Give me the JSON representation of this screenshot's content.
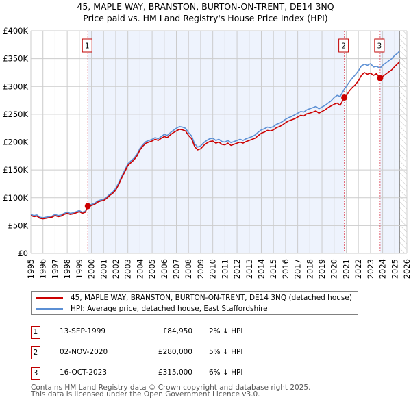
{
  "header": {
    "title_line1": "45, MAPLE WAY, BRANSTON, BURTON-ON-TRENT, DE14 3NQ",
    "title_line2": "Price paid vs. HM Land Registry's House Price Index (HPI)"
  },
  "colors": {
    "price_paid": "#cc0000",
    "hpi": "#5b8fd4",
    "shade": "#eef3fd",
    "grid": "#cccccc",
    "marker_border": "#c00000",
    "vline": "#e06070"
  },
  "chart_data": {
    "type": "line",
    "title": "45, MAPLE WAY, BRANSTON, BURTON-ON-TRENT, DE14 3NQ — Price paid vs. HM Land Registry's House Price Index (HPI)",
    "xlabel": "",
    "ylabel": "",
    "xlim": [
      1995,
      2026
    ],
    "ylim": [
      0,
      400000
    ],
    "grid": true,
    "x_ticks": [
      "1995",
      "1996",
      "1997",
      "1998",
      "1999",
      "2000",
      "2001",
      "2002",
      "2003",
      "2004",
      "2005",
      "2006",
      "2007",
      "2008",
      "2009",
      "2010",
      "2011",
      "2012",
      "2013",
      "2014",
      "2015",
      "2016",
      "2017",
      "2018",
      "2019",
      "2020",
      "2021",
      "2022",
      "2023",
      "2024",
      "2025",
      "2026"
    ],
    "y_ticks": [
      {
        "value": 0,
        "label": "£0"
      },
      {
        "value": 50000,
        "label": "£50K"
      },
      {
        "value": 100000,
        "label": "£100K"
      },
      {
        "value": 150000,
        "label": "£150K"
      },
      {
        "value": 200000,
        "label": "£200K"
      },
      {
        "value": 250000,
        "label": "£250K"
      },
      {
        "value": 300000,
        "label": "£300K"
      },
      {
        "value": 350000,
        "label": "£350K"
      },
      {
        "value": 400000,
        "label": "£400K"
      }
    ],
    "shaded_ranges": [
      [
        1999.7,
        2020.84
      ],
      [
        2023.79,
        2025.4
      ]
    ],
    "hatched_from": 2025.4,
    "legend_position": "below",
    "series": [
      {
        "name": "45, MAPLE WAY, BRANSTON, BURTON-ON-TRENT, DE14 3NQ (detached house)",
        "color": "#cc0000",
        "x": [
          1995.0,
          1995.25,
          1995.5,
          1995.75,
          1996.0,
          1996.25,
          1996.5,
          1996.75,
          1997.0,
          1997.25,
          1997.5,
          1997.75,
          1998.0,
          1998.25,
          1998.5,
          1998.75,
          1999.0,
          1999.25,
          1999.5,
          1999.7,
          2000.0,
          2000.25,
          2000.5,
          2000.75,
          2001.0,
          2001.25,
          2001.5,
          2001.75,
          2002.0,
          2002.25,
          2002.5,
          2002.75,
          2003.0,
          2003.25,
          2003.5,
          2003.75,
          2004.0,
          2004.25,
          2004.5,
          2004.75,
          2005.0,
          2005.25,
          2005.5,
          2005.75,
          2006.0,
          2006.25,
          2006.5,
          2006.75,
          2007.0,
          2007.25,
          2007.5,
          2007.75,
          2008.0,
          2008.25,
          2008.5,
          2008.75,
          2009.0,
          2009.25,
          2009.5,
          2009.75,
          2010.0,
          2010.25,
          2010.5,
          2010.75,
          2011.0,
          2011.25,
          2011.5,
          2011.75,
          2012.0,
          2012.25,
          2012.5,
          2012.75,
          2013.0,
          2013.25,
          2013.5,
          2013.75,
          2014.0,
          2014.25,
          2014.5,
          2014.75,
          2015.0,
          2015.25,
          2015.5,
          2015.75,
          2016.0,
          2016.25,
          2016.5,
          2016.75,
          2017.0,
          2017.25,
          2017.5,
          2017.75,
          2018.0,
          2018.25,
          2018.5,
          2018.75,
          2019.0,
          2019.25,
          2019.5,
          2019.75,
          2020.0,
          2020.25,
          2020.5,
          2020.84,
          2021.0,
          2021.25,
          2021.5,
          2021.75,
          2022.0,
          2022.25,
          2022.5,
          2022.75,
          2023.0,
          2023.25,
          2023.5,
          2023.79,
          2024.0,
          2024.25,
          2024.5,
          2024.75,
          2025.0,
          2025.25,
          2025.4
        ],
        "values": [
          68000,
          66000,
          67000,
          63000,
          62000,
          63000,
          64000,
          65000,
          68000,
          66000,
          67000,
          70000,
          72000,
          70000,
          71000,
          73000,
          75000,
          72000,
          74000,
          84950,
          86000,
          88000,
          92000,
          94000,
          95000,
          99000,
          104000,
          108000,
          114000,
          124000,
          136000,
          147000,
          158000,
          163000,
          168000,
          175000,
          186000,
          193000,
          198000,
          200000,
          202000,
          205000,
          203000,
          207000,
          210000,
          208000,
          213000,
          217000,
          220000,
          223000,
          222000,
          220000,
          212000,
          206000,
          192000,
          186000,
          188000,
          194000,
          198000,
          201000,
          202000,
          198000,
          200000,
          196000,
          195000,
          198000,
          194000,
          196000,
          198000,
          200000,
          198000,
          201000,
          203000,
          205000,
          207000,
          212000,
          216000,
          218000,
          221000,
          220000,
          222000,
          226000,
          228000,
          231000,
          235000,
          238000,
          240000,
          242000,
          245000,
          248000,
          247000,
          251000,
          252000,
          254000,
          256000,
          252000,
          255000,
          258000,
          262000,
          265000,
          268000,
          270000,
          266000,
          280000,
          283000,
          292000,
          298000,
          303000,
          310000,
          320000,
          325000,
          322000,
          324000,
          320000,
          323000,
          315000,
          318000,
          322000,
          326000,
          330000,
          336000,
          341000,
          345000
        ]
      },
      {
        "name": "HPI: Average price, detached house, East Staffordshire",
        "color": "#5b8fd4",
        "x": [
          1995.0,
          1995.25,
          1995.5,
          1995.75,
          1996.0,
          1996.25,
          1996.5,
          1996.75,
          1997.0,
          1997.25,
          1997.5,
          1997.75,
          1998.0,
          1998.25,
          1998.5,
          1998.75,
          1999.0,
          1999.25,
          1999.5,
          1999.7,
          2000.0,
          2000.25,
          2000.5,
          2000.75,
          2001.0,
          2001.25,
          2001.5,
          2001.75,
          2002.0,
          2002.25,
          2002.5,
          2002.75,
          2003.0,
          2003.25,
          2003.5,
          2003.75,
          2004.0,
          2004.25,
          2004.5,
          2004.75,
          2005.0,
          2005.25,
          2005.5,
          2005.75,
          2006.0,
          2006.25,
          2006.5,
          2006.75,
          2007.0,
          2007.25,
          2007.5,
          2007.75,
          2008.0,
          2008.25,
          2008.5,
          2008.75,
          2009.0,
          2009.25,
          2009.5,
          2009.75,
          2010.0,
          2010.25,
          2010.5,
          2010.75,
          2011.0,
          2011.25,
          2011.5,
          2011.75,
          2012.0,
          2012.25,
          2012.5,
          2012.75,
          2013.0,
          2013.25,
          2013.5,
          2013.75,
          2014.0,
          2014.25,
          2014.5,
          2014.75,
          2015.0,
          2015.25,
          2015.5,
          2015.75,
          2016.0,
          2016.25,
          2016.5,
          2016.75,
          2017.0,
          2017.25,
          2017.5,
          2017.75,
          2018.0,
          2018.25,
          2018.5,
          2018.75,
          2019.0,
          2019.25,
          2019.5,
          2019.75,
          2020.0,
          2020.25,
          2020.5,
          2020.84,
          2021.0,
          2021.25,
          2021.5,
          2021.75,
          2022.0,
          2022.25,
          2022.5,
          2022.75,
          2023.0,
          2023.25,
          2023.5,
          2023.79,
          2024.0,
          2024.25,
          2024.5,
          2024.75,
          2025.0,
          2025.25,
          2025.4
        ],
        "values": [
          70000,
          68000,
          69000,
          65000,
          64000,
          65000,
          66000,
          67000,
          70000,
          68000,
          69000,
          72000,
          74000,
          72000,
          73000,
          75000,
          77000,
          74000,
          76000,
          86500,
          88000,
          90000,
          94000,
          96000,
          97000,
          101000,
          106000,
          110000,
          117000,
          127000,
          139000,
          150000,
          161000,
          166000,
          171000,
          178000,
          189000,
          196000,
          201000,
          203000,
          205000,
          208000,
          206000,
          210000,
          214000,
          212000,
          217000,
          221000,
          225000,
          228000,
          227000,
          225000,
          217000,
          211000,
          197000,
          191000,
          193000,
          199000,
          203000,
          206000,
          207000,
          203000,
          205000,
          201000,
          200000,
          203000,
          199000,
          201000,
          203000,
          205000,
          203000,
          206000,
          208000,
          210000,
          213000,
          218000,
          222000,
          224000,
          227000,
          226000,
          228000,
          232000,
          234000,
          237000,
          241000,
          244000,
          246000,
          249000,
          252000,
          255000,
          254000,
          258000,
          260000,
          262000,
          264000,
          260000,
          263000,
          266000,
          270000,
          274000,
          280000,
          284000,
          282000,
          295000,
          300000,
          308000,
          315000,
          321000,
          328000,
          337000,
          340000,
          338000,
          341000,
          335000,
          336000,
          333000,
          338000,
          342000,
          346000,
          350000,
          356000,
          360000,
          364000
        ]
      }
    ],
    "markers": [
      {
        "label": "1",
        "x": 1999.7,
        "value": 84950
      },
      {
        "label": "2",
        "x": 2020.84,
        "value": 280000
      },
      {
        "label": "3",
        "x": 2023.79,
        "value": 315000
      }
    ]
  },
  "legend": {
    "items": [
      {
        "label": "45, MAPLE WAY, BRANSTON, BURTON-ON-TRENT, DE14 3NQ (detached house)",
        "color": "#cc0000"
      },
      {
        "label": "HPI: Average price, detached house, East Staffordshire",
        "color": "#5b8fd4"
      }
    ]
  },
  "sales": [
    {
      "num": "1",
      "date": "13-SEP-1999",
      "price": "£84,950",
      "hpi": "2% ↓ HPI"
    },
    {
      "num": "2",
      "date": "02-NOV-2020",
      "price": "£280,000",
      "hpi": "5% ↓ HPI"
    },
    {
      "num": "3",
      "date": "16-OCT-2023",
      "price": "£315,000",
      "hpi": "6% ↓ HPI"
    }
  ],
  "footer": {
    "line1": "Contains HM Land Registry data © Crown copyright and database right 2025.",
    "line2": "This data is licensed under the Open Government Licence v3.0."
  }
}
